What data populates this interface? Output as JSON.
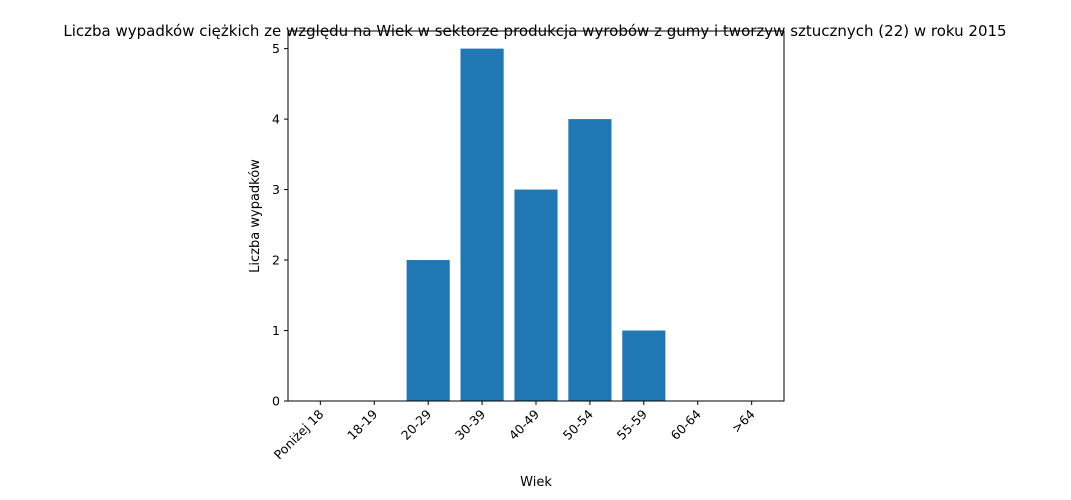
{
  "chart_data": {
    "type": "bar",
    "title": "Liczba wypadków ciężkich ze względu na Wiek w sektorze produkcja wyrobów z gumy i tworzyw sztucznych (22) w roku 2015",
    "xlabel": "Wiek",
    "ylabel": "Liczba wypadków",
    "categories": [
      "Poniżej 18",
      "18-19",
      "20-29",
      "30-39",
      "40-49",
      "50-54",
      "55-59",
      "60-64",
      ">64"
    ],
    "values": [
      0,
      0,
      2,
      5,
      3,
      4,
      1,
      0,
      0
    ],
    "ylim": [
      0,
      5.25
    ],
    "yticks": [
      0,
      1,
      2,
      3,
      4,
      5
    ],
    "bar_color": "#1f77b4",
    "grid": false,
    "legend": "none"
  }
}
